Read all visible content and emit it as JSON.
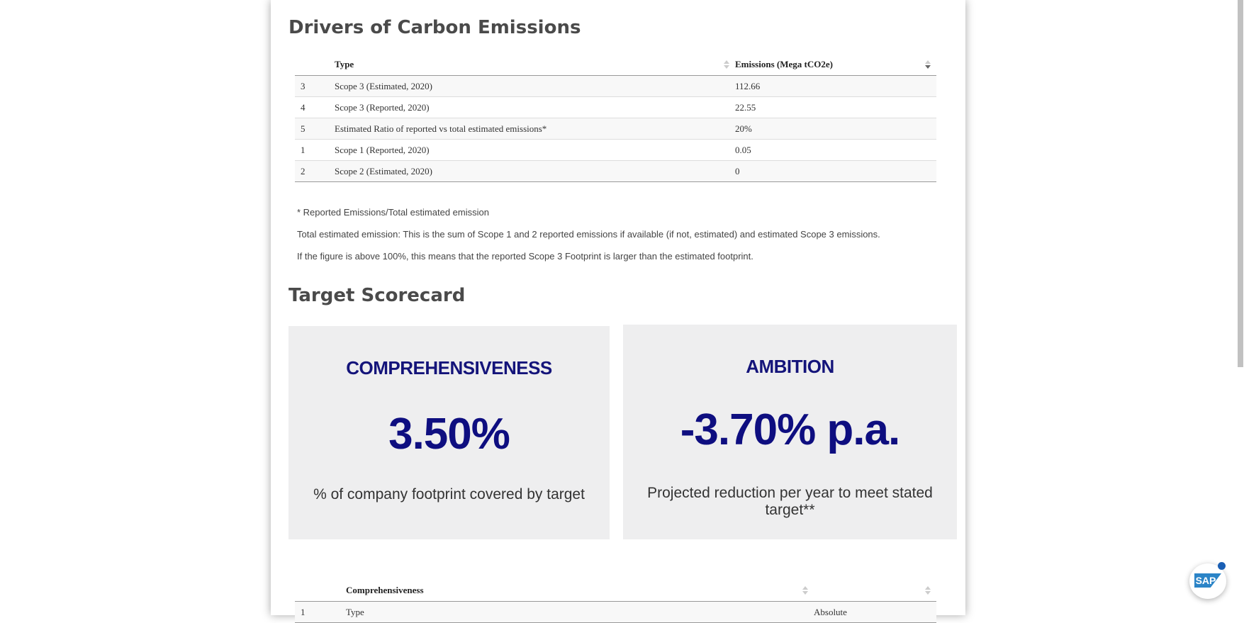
{
  "drivers": {
    "title": "Drivers of Carbon Emissions",
    "columns": [
      "Type",
      "Emissions (Mega tCO2e)"
    ],
    "rows": [
      {
        "index": "3",
        "type": "Scope 3 (Estimated, 2020)",
        "value": "112.66"
      },
      {
        "index": "4",
        "type": "Scope 3 (Reported, 2020)",
        "value": "22.55"
      },
      {
        "index": "5",
        "type": "Estimated Ratio of reported vs total estimated emissions*",
        "value": "20%"
      },
      {
        "index": "1",
        "type": "Scope 1 (Reported, 2020)",
        "value": "0.05"
      },
      {
        "index": "2",
        "type": "Scope 2 (Estimated, 2020)",
        "value": "0"
      }
    ],
    "notes": [
      "* Reported Emissions/Total estimated emission",
      "Total estimated emission: This is the sum of Scope 1 and 2 reported emissions if available (if not, estimated) and estimated Scope 3 emissions.",
      "If the figure is above 100%, this means that the reported Scope 3 Footprint is larger than the estimated footprint."
    ]
  },
  "scorecard": {
    "title": "Target Scorecard",
    "cards": [
      {
        "label": "COMPREHENSIVENESS",
        "value": "3.50%",
        "description": "% of company footprint covered by target"
      },
      {
        "label": "AMBITION",
        "value": "-3.70% p.a.",
        "description": "Projected reduction per year to meet stated target**"
      }
    ]
  },
  "comprehensiveness_table": {
    "columns": [
      "Comprehensiveness",
      ""
    ],
    "rows": [
      {
        "index": "1",
        "type": "Type",
        "value": "Absolute"
      }
    ]
  },
  "sap_button": {
    "label": "SAP"
  },
  "colors": {
    "card_text": "#0e0e80",
    "card_bg": "#eeeeef",
    "title": "#4a4a4a"
  }
}
